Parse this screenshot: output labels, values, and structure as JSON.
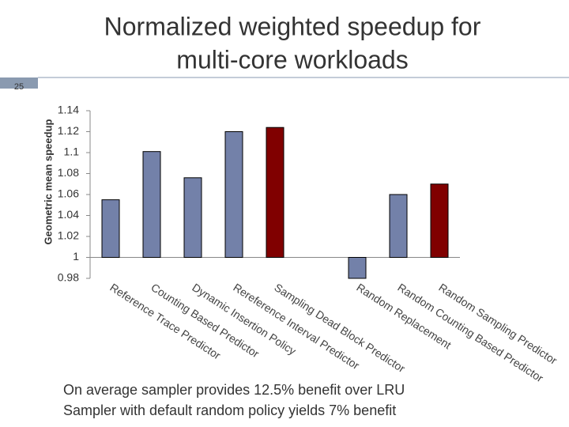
{
  "slide_number": "25",
  "chart_data": {
    "type": "bar",
    "title": [
      "Normalized weighted speedup for",
      "multi-core workloads"
    ],
    "y_label": "Geometric mean speedup",
    "categories": [
      "Reference Trace Predictor",
      "Counting Based Predictor",
      "Dynamic Insertion Policy",
      "Rereference Interval Predictor",
      "Sampling Dead Block Predictor",
      null,
      "Random Replacement",
      "Random Counting Based Predictor",
      "Random Sampling Predictor"
    ],
    "values": [
      1.055,
      1.101,
      1.076,
      1.12,
      1.124,
      null,
      0.98,
      1.06,
      1.07
    ],
    "colors": [
      "#7381a9",
      "#7381a9",
      "#7381a9",
      "#7381a9",
      "#800000",
      null,
      "#7381a9",
      "#7381a9",
      "#800000"
    ],
    "ylim": [
      0.98,
      1.14
    ],
    "yticks": [
      0.98,
      1,
      1.02,
      1.04,
      1.06,
      1.08,
      1.1,
      1.12,
      1.14
    ],
    "baseline": 1,
    "grid": false
  },
  "notes": [
    "On average sampler provides 12.5% benefit over LRU",
    "Sampler with default random policy yields 7% benefit"
  ]
}
